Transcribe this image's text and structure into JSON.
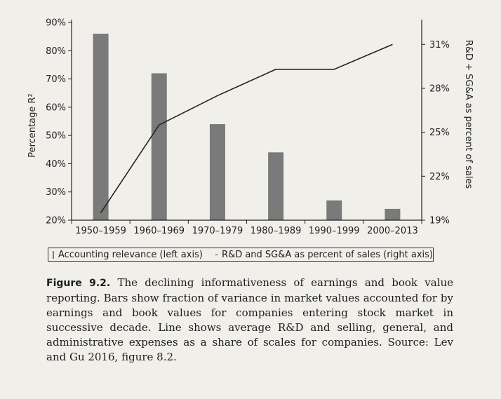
{
  "chart_data": {
    "type": "bar",
    "categories": [
      "1950–1959",
      "1960–1969",
      "1970–1979",
      "1980–1989",
      "1990–1999",
      "2000–2013"
    ],
    "series": [
      {
        "name": "Accounting relevance (left axis)",
        "type": "bar",
        "axis": "left",
        "values": [
          86,
          72,
          54,
          44,
          27,
          24
        ]
      },
      {
        "name": "R&D and SG&A as percent of sales (right axis)",
        "type": "line",
        "axis": "right",
        "values": [
          19.5,
          25.5,
          27.5,
          29.3,
          29.3,
          31.0
        ]
      }
    ],
    "y_left": {
      "label": "Percentage R²",
      "lim": [
        20,
        90
      ],
      "ticks": [
        20,
        30,
        40,
        50,
        60,
        70,
        80,
        90
      ],
      "tick_labels": [
        "20%",
        "30%",
        "40%",
        "50%",
        "60%",
        "70%",
        "80%",
        "90%"
      ]
    },
    "y_right": {
      "label": "R&D + SG&A as percent of sales",
      "lim": [
        19,
        32.5
      ],
      "ticks": [
        19,
        22,
        25,
        28,
        31
      ],
      "tick_labels": [
        "19%",
        "22%",
        "25%",
        "28%",
        "31%"
      ]
    },
    "grid": false,
    "legend_position": "bottom",
    "colors": {
      "bar": "#7a7a7a",
      "line": "#222222",
      "axis": "#222222"
    }
  },
  "caption": {
    "label": "Figure 9.2.",
    "text": "The declining informativeness of earnings and book value reporting. Bars show fraction of variance in market values accounted for by earnings and book values for companies entering stock market in successive decade. Line shows average R&D and selling, general, and administrative expenses as a share of scales for companies. Source: Lev and Gu 2016, figure 8.2."
  }
}
